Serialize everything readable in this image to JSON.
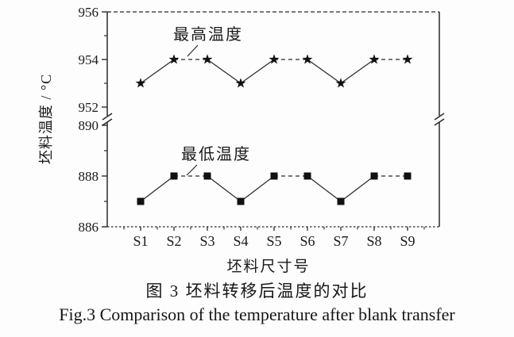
{
  "figure": {
    "caption_zh": "图 3  坯料转移后温度的对比",
    "caption_en": "Fig.3  Comparison of the temperature after blank transfer"
  },
  "chart_data": {
    "type": "line",
    "categories": [
      "S1",
      "S2",
      "S3",
      "S4",
      "S5",
      "S6",
      "S7",
      "S8",
      "S9"
    ],
    "series": [
      {
        "name": "最高温度",
        "marker": "star",
        "values": [
          953,
          954,
          954,
          953,
          954,
          954,
          953,
          954,
          954
        ]
      },
      {
        "name": "最低温度",
        "marker": "square",
        "values": [
          887,
          888,
          888,
          887,
          888,
          888,
          887,
          888,
          888
        ]
      }
    ],
    "xlabel": "坯料尺寸号",
    "ylabel": "坯料温度 / °C",
    "y_axis": {
      "broken": true,
      "upper_range": [
        952,
        956
      ],
      "upper_ticks": [
        956,
        954,
        952
      ],
      "upper_minor_ticks": [
        955,
        953
      ],
      "lower_range": [
        886,
        890
      ],
      "lower_ticks": [
        890,
        888,
        886
      ],
      "lower_minor_ticks": [
        889,
        887
      ]
    },
    "grid": false,
    "ink_color": "#2a2a2a",
    "marker_color": "#111111",
    "style": {
      "horizontal_segments": "dashed",
      "sloped_segments": "solid",
      "top_border": "dashed",
      "bottom_axis": "dotted"
    }
  }
}
